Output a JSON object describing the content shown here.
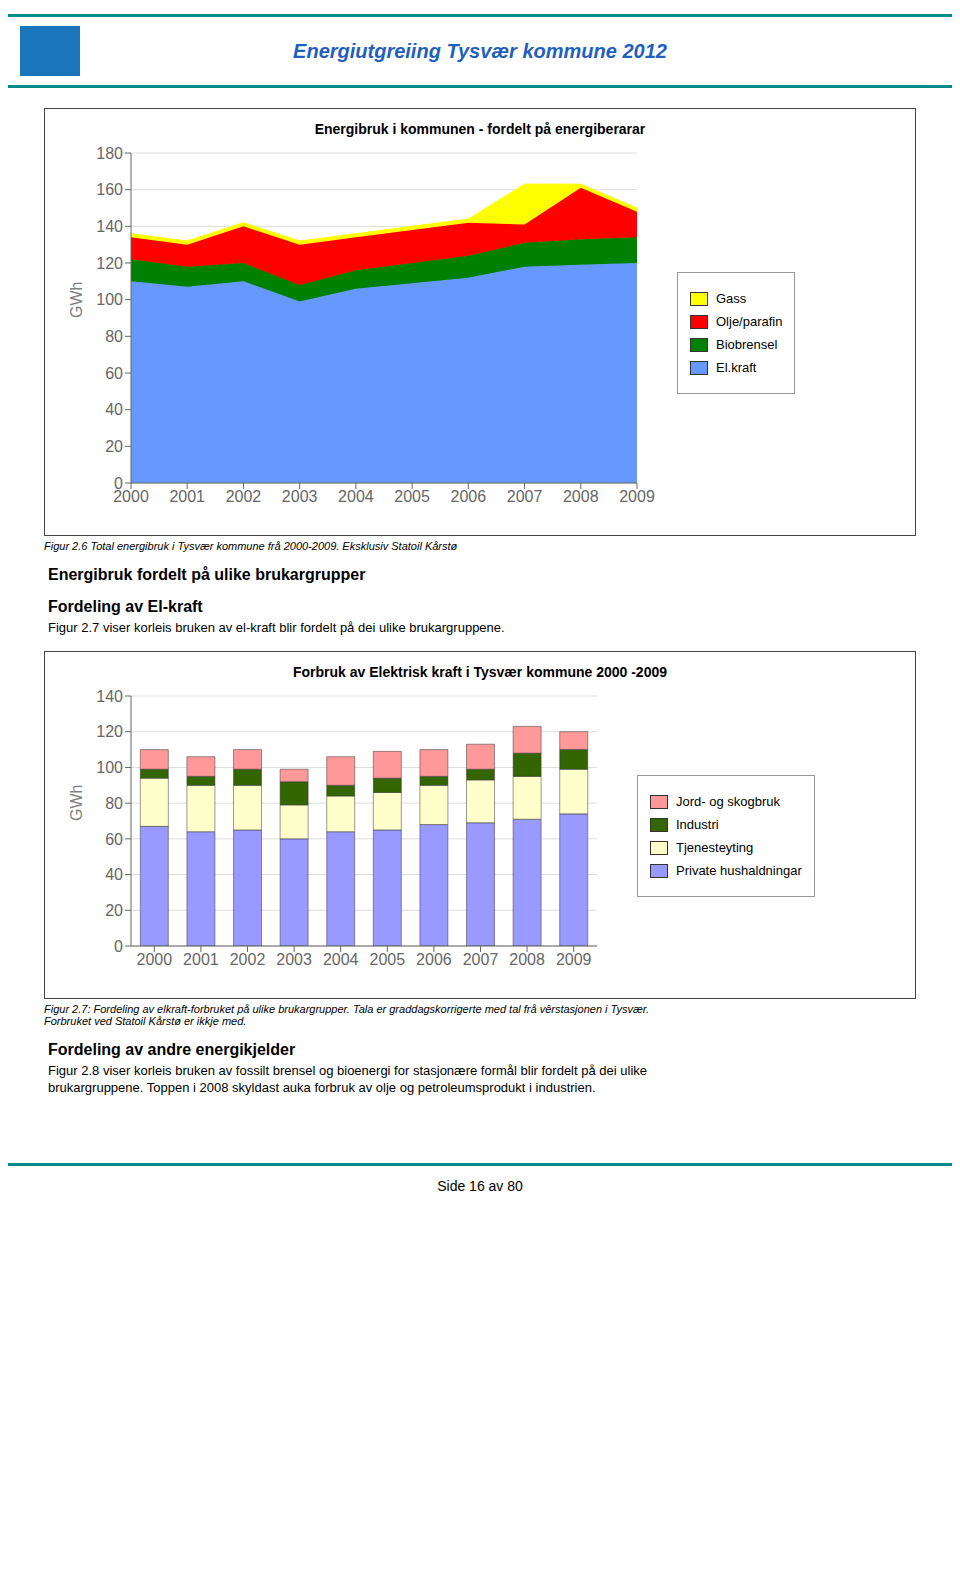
{
  "title": "Energiutgreiing Tysvær kommune 2012",
  "annotations": [
    "Energibruk fordelt på ulike brukargrupper",
    "Fordeling av El-kraft",
    "Figur 2.7 viser korleis bruken av el-kraft blir fordelt på dei ulike brukargruppene.",
    "Fordeling av andre energikjelder",
    "Figur 2.8 viser korleis bruken av fossilt brensel og bioenergi for stasjonære formål blir fordelt på dei ulike",
    "brukargruppene. Toppen i 2008 skyldast auka forbruk av olje og petroleumsprodukt i industrien.",
    "Side 16 av 80"
  ],
  "chart_data": [
    {
      "type": "area",
      "title": "Energibruk i kommunen - fordelt på energiberarar",
      "y_label": "GWh",
      "x": [
        2000,
        2001,
        2002,
        2003,
        2004,
        2005,
        2006,
        2007,
        2008,
        2009
      ],
      "xlim": [
        2000,
        2009
      ],
      "xticks": [
        2000,
        2001,
        2002,
        2003,
        2004,
        2005,
        2006,
        2007,
        2008,
        2009
      ],
      "ylim": [
        0,
        180
      ],
      "yticks": [
        0,
        20,
        40,
        60,
        80,
        100,
        120,
        140,
        160,
        180
      ],
      "stacked": true,
      "grid": true,
      "legend": "right",
      "series": [
        {
          "name": "El.kraft",
          "color": "#6699FF",
          "values": [
            110,
            107,
            110,
            99,
            106,
            109,
            112,
            118,
            119,
            120
          ]
        },
        {
          "name": "Biobrensel",
          "color": "#008000",
          "values": [
            12,
            11,
            10,
            9,
            10,
            11,
            12,
            13,
            14,
            14
          ]
        },
        {
          "name": "Olje/parafin",
          "color": "#FF0000",
          "values": [
            12,
            12,
            20,
            22,
            18,
            18,
            18,
            10,
            28,
            14
          ]
        },
        {
          "name": "Gass",
          "color": "#FFFF00",
          "values": [
            2,
            2,
            2,
            2,
            2,
            2,
            2,
            22,
            2,
            2
          ]
        }
      ],
      "annotations": [
        "Figur 2.6  Total energibruk i Tysvær kommune frå 2000-2009. Eksklusiv Statoil Kårstø"
      ]
    },
    {
      "type": "bar",
      "title": "Forbruk av Elektrisk kraft i Tysvær kommune 2000 -2009",
      "y_label": "GWh",
      "categories": [
        "2000",
        "2001",
        "2002",
        "2003",
        "2004",
        "2005",
        "2006",
        "2007",
        "2008",
        "2009"
      ],
      "ylim": [
        0,
        140
      ],
      "yticks": [
        0,
        20,
        40,
        60,
        80,
        100,
        120,
        140
      ],
      "stacked": true,
      "grid": true,
      "legend": "right",
      "series": [
        {
          "name": "Private hushaldningar",
          "color": "#9999FF",
          "values": [
            67,
            64,
            65,
            60,
            64,
            65,
            68,
            69,
            71,
            74
          ]
        },
        {
          "name": "Tjenesteyting",
          "color": "#FFFFCC",
          "values": [
            27,
            26,
            25,
            19,
            20,
            21,
            22,
            24,
            24,
            25
          ]
        },
        {
          "name": "Industri",
          "color": "#336600",
          "values": [
            5,
            5,
            9,
            13,
            6,
            8,
            5,
            6,
            13,
            11
          ]
        },
        {
          "name": "Jord- og skogbruk",
          "color": "#FF9999",
          "values": [
            11,
            11,
            11,
            7,
            16,
            15,
            15,
            14,
            15,
            10
          ]
        }
      ],
      "annotations": [
        "Figur 2.7: Fordeling av elkraft-forbruket på ulike brukargrupper. Tala er graddagskorrigerte med tal frå vêrstasjonen i Tysvær.",
        "Forbruket ved Statoil Kårstø er ikkje med."
      ]
    }
  ]
}
